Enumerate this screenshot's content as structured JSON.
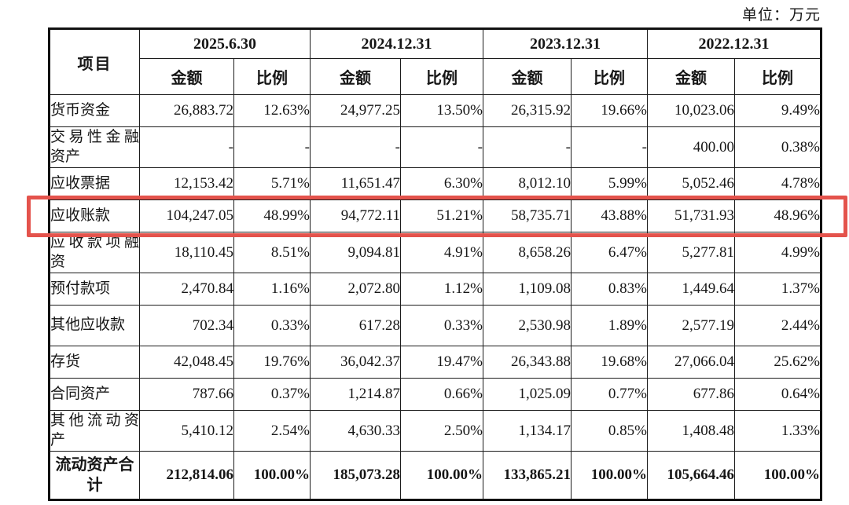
{
  "unit_label": "单位：万元",
  "highlight_color": "#e4534c",
  "table": {
    "item_header": "项目",
    "periods": [
      "2025.6.30",
      "2024.12.31",
      "2023.12.31",
      "2022.12.31"
    ],
    "sub_headers": {
      "amount": "金额",
      "ratio": "比例"
    },
    "rows": [
      {
        "label": "货币资金",
        "two_line": false,
        "cells": [
          "26,883.72",
          "12.63%",
          "24,977.25",
          "13.50%",
          "26,315.92",
          "19.66%",
          "10,023.06",
          "9.49%"
        ]
      },
      {
        "label": "交易性金融资产",
        "two_line": true,
        "cells": [
          "-",
          "-",
          "-",
          "-",
          "-",
          "-",
          "400.00",
          "0.38%"
        ]
      },
      {
        "label": "应收票据",
        "two_line": false,
        "cells": [
          "12,153.42",
          "5.71%",
          "11,651.47",
          "6.30%",
          "8,012.10",
          "5.99%",
          "5,052.46",
          "4.78%"
        ]
      },
      {
        "label": "应收账款",
        "two_line": false,
        "highlighted": true,
        "cells": [
          "104,247.05",
          "48.99%",
          "94,772.11",
          "51.21%",
          "58,735.71",
          "43.88%",
          "51,731.93",
          "48.96%"
        ]
      },
      {
        "label": "应收款项融资",
        "two_line": true,
        "cells": [
          "18,110.45",
          "8.51%",
          "9,094.81",
          "4.91%",
          "8,658.26",
          "6.47%",
          "5,277.81",
          "4.99%"
        ]
      },
      {
        "label": "预付款项",
        "two_line": false,
        "cells": [
          "2,470.84",
          "1.16%",
          "2,072.80",
          "1.12%",
          "1,109.08",
          "0.83%",
          "1,449.64",
          "1.37%"
        ]
      },
      {
        "label": "其他应收款",
        "two_line": true,
        "cells": [
          "702.34",
          "0.33%",
          "617.28",
          "0.33%",
          "2,530.98",
          "1.89%",
          "2,577.19",
          "2.44%"
        ]
      },
      {
        "label": "存货",
        "two_line": false,
        "cells": [
          "42,048.45",
          "19.76%",
          "36,042.37",
          "19.47%",
          "26,343.88",
          "19.68%",
          "27,066.04",
          "25.62%"
        ]
      },
      {
        "label": "合同资产",
        "two_line": false,
        "cells": [
          "787.66",
          "0.37%",
          "1,214.87",
          "0.66%",
          "1,025.09",
          "0.77%",
          "677.86",
          "0.64%"
        ]
      },
      {
        "label": "其他流动资产",
        "two_line": true,
        "cells": [
          "5,410.12",
          "2.54%",
          "4,630.33",
          "2.50%",
          "1,134.17",
          "0.85%",
          "1,408.48",
          "1.33%"
        ]
      },
      {
        "label": "流动资产合计",
        "two_line": true,
        "total": true,
        "cells": [
          "212,814.06",
          "100.00%",
          "185,073.28",
          "100.00%",
          "133,865.21",
          "100.00%",
          "105,664.46",
          "100.00%"
        ]
      }
    ]
  }
}
